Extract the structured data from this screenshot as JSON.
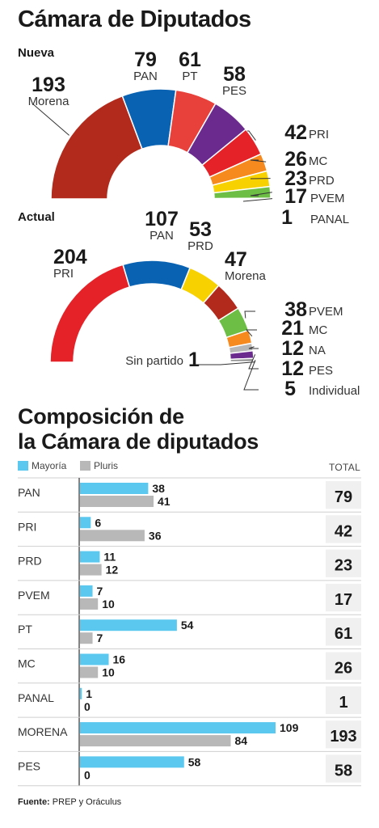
{
  "title": "Cámara de Diputados",
  "nueva_label": "Nueva",
  "actual_label": "Actual",
  "chart_data": [
    {
      "type": "pie",
      "title": "Nueva",
      "total": 500,
      "slices": [
        {
          "party": "Morena",
          "seats": 193,
          "color": "#b22a1c"
        },
        {
          "party": "PAN",
          "seats": 79,
          "color": "#0a62b3"
        },
        {
          "party": "PT",
          "seats": 61,
          "color": "#e8403a"
        },
        {
          "party": "PES",
          "seats": 58,
          "color": "#6a2a8e"
        },
        {
          "party": "PRI",
          "seats": 42,
          "color": "#e62229"
        },
        {
          "party": "MC",
          "seats": 26,
          "color": "#f68a1f"
        },
        {
          "party": "PRD",
          "seats": 23,
          "color": "#f7d200"
        },
        {
          "party": "PVEM",
          "seats": 17,
          "color": "#6dbe45"
        },
        {
          "party": "PANAL",
          "seats": 1,
          "color": "#35b5d6"
        }
      ]
    },
    {
      "type": "pie",
      "title": "Actual",
      "total": 500,
      "slices": [
        {
          "party": "PRI",
          "seats": 204,
          "color": "#e62229"
        },
        {
          "party": "PAN",
          "seats": 107,
          "color": "#0a62b3"
        },
        {
          "party": "PRD",
          "seats": 53,
          "color": "#f7d200"
        },
        {
          "party": "Morena",
          "seats": 47,
          "color": "#b22a1c"
        },
        {
          "party": "PVEM",
          "seats": 38,
          "color": "#6dbe45"
        },
        {
          "party": "MC",
          "seats": 21,
          "color": "#f68a1f"
        },
        {
          "party": "NA",
          "seats": 12,
          "color": "#b7b7b7"
        },
        {
          "party": "PES",
          "seats": 12,
          "color": "#6a2a8e"
        },
        {
          "party": "Individual",
          "seats": 5,
          "color": "#8c8c8c"
        },
        {
          "party": "Sin partido",
          "seats": 1,
          "color": "#cccccc"
        }
      ]
    },
    {
      "type": "bar",
      "title": "Composición de la Cámara de diputados",
      "categories": [
        "PAN",
        "PRI",
        "PRD",
        "PVEM",
        "PT",
        "MC",
        "PANAL",
        "MORENA",
        "PES"
      ],
      "series": [
        {
          "name": "Mayoría",
          "values": [
            38,
            6,
            11,
            7,
            54,
            16,
            1,
            109,
            58
          ],
          "color": "#5bc8ef"
        },
        {
          "name": "Pluris",
          "values": [
            41,
            36,
            12,
            10,
            7,
            10,
            0,
            84,
            0
          ],
          "color": "#b8b8b8"
        }
      ],
      "totals": [
        79,
        42,
        23,
        17,
        61,
        26,
        1,
        193,
        58
      ],
      "total_label": "TOTAL",
      "xlim": [
        0,
        115
      ]
    }
  ],
  "composition_title_line1": "Composición  de",
  "composition_title_line2": "la Cámara de diputados",
  "source_label": "Fuente:",
  "source_text": "PREP y Oráculus"
}
